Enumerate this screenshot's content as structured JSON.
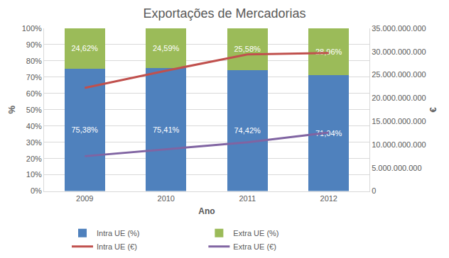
{
  "chart_data": {
    "type": "bar",
    "title": "Exportações de Mercadorias",
    "x_label": "Ano",
    "y_label": "%",
    "y2_label": "€",
    "categories": [
      "2009",
      "2010",
      "2011",
      "2012"
    ],
    "stacked": true,
    "data_labels": true,
    "grid": true,
    "legend": "bottom",
    "ylim": [
      0,
      100
    ],
    "yticks": [
      {
        "value": 0,
        "label": "0%"
      },
      {
        "value": 10,
        "label": "10%"
      },
      {
        "value": 20,
        "label": "20%"
      },
      {
        "value": 30,
        "label": "30%"
      },
      {
        "value": 40,
        "label": "40%"
      },
      {
        "value": 50,
        "label": "50%"
      },
      {
        "value": 60,
        "label": "60%"
      },
      {
        "value": 70,
        "label": "70%"
      },
      {
        "value": 80,
        "label": "80%"
      },
      {
        "value": 90,
        "label": "90%"
      },
      {
        "value": 100,
        "label": "100%"
      }
    ],
    "y2lim": [
      0,
      35000000000
    ],
    "y2ticks": [
      0,
      {
        "value": 5000000000,
        "label": "5.000.000.000"
      },
      {
        "value": 10000000000,
        "label": "10.000.000.000"
      },
      {
        "value": 15000000000,
        "label": "15.000.000.000"
      },
      {
        "value": 20000000000,
        "label": "20.000.000.000"
      },
      {
        "value": 25000000000,
        "label": "25.000.000.000"
      },
      {
        "value": 30000000000,
        "label": "30.000.000.000"
      },
      {
        "value": 35000000000,
        "label": "35.000.000.000"
      }
    ],
    "series": [
      {
        "name": "Intra UE (%)",
        "type": "bar",
        "color": "#4F81BD",
        "values": [
          75.38,
          75.41,
          74.42,
          71.04
        ],
        "value_labels": [
          "75,38%",
          "75,41%",
          "74,42%",
          "71,04%"
        ]
      },
      {
        "name": "Extra UE (%)",
        "type": "bar",
        "color": "#9BBB59",
        "values": [
          24.62,
          24.59,
          25.58,
          28.96
        ],
        "value_labels": [
          "24,62%",
          "24,59%",
          "25,58%",
          "28,96%"
        ]
      },
      {
        "name": "Intra UE (€)",
        "type": "line",
        "axis": "y2",
        "color": "#C0504D",
        "values": [
          22200000000,
          25900000000,
          29400000000,
          29700000000
        ]
      },
      {
        "name": "Extra UE (€)",
        "type": "line",
        "axis": "y2",
        "color": "#8064A2",
        "values": [
          7500000000,
          9000000000,
          10500000000,
          12600000000
        ]
      }
    ]
  }
}
